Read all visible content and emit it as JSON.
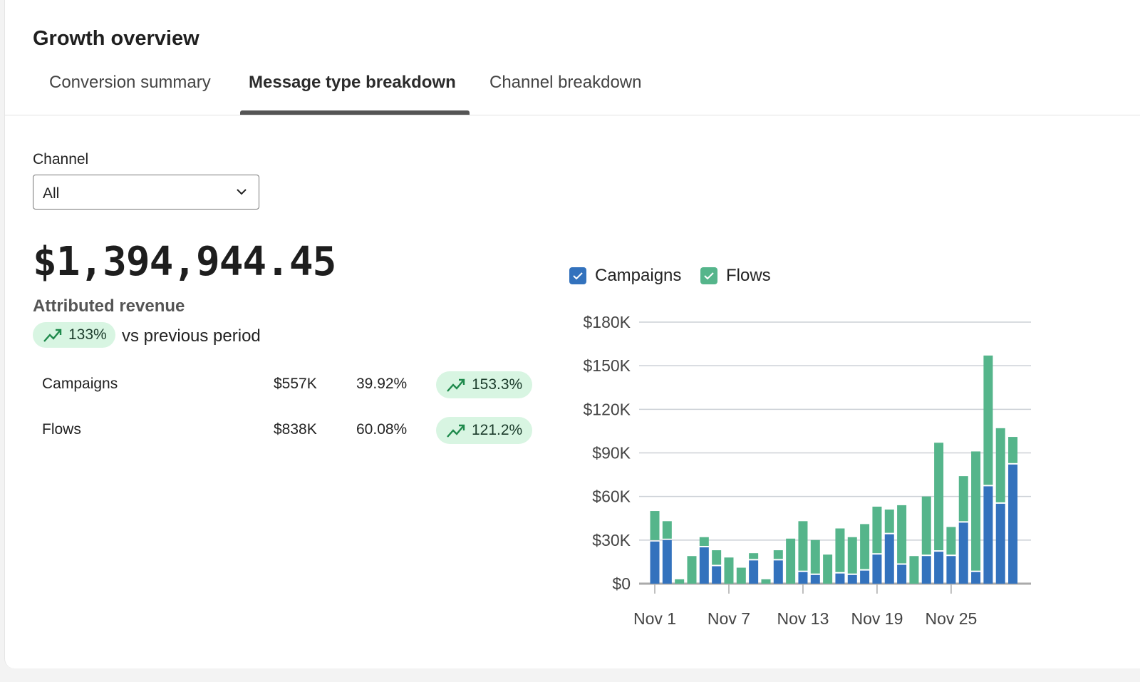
{
  "title": "Growth overview",
  "tabs": [
    {
      "label": "Conversion summary"
    },
    {
      "label": "Message type breakdown",
      "active": true
    },
    {
      "label": "Channel breakdown"
    }
  ],
  "filter": {
    "label": "Channel",
    "value": "All"
  },
  "summary": {
    "total": "$1,394,944.45",
    "label": "Attributed revenue",
    "change": "133%",
    "change_suffix": "vs previous period"
  },
  "rows": [
    {
      "name": "Campaigns",
      "revenue": "$557K",
      "share": "39.92%",
      "change": "153.3%"
    },
    {
      "name": "Flows",
      "revenue": "$838K",
      "share": "60.08%",
      "change": "121.2%"
    }
  ],
  "colors": {
    "campaigns": "#3372bd",
    "flows": "#55b58b",
    "positive_bg": "#d8f5e2",
    "positive_icon": "#1f8a4c"
  },
  "chart_data": {
    "type": "bar",
    "stacked": true,
    "legend": [
      "Campaigns",
      "Flows"
    ],
    "ylim": [
      0,
      180000
    ],
    "yticks": [
      "$0",
      "$30K",
      "$60K",
      "$90K",
      "$120K",
      "$150K",
      "$180K"
    ],
    "xticks": [
      "Nov 1",
      "Nov 7",
      "Nov 13",
      "Nov 19",
      "Nov 25"
    ],
    "x": [
      "Nov 1",
      "Nov 2",
      "Nov 3",
      "Nov 4",
      "Nov 5",
      "Nov 6",
      "Nov 7",
      "Nov 8",
      "Nov 9",
      "Nov 10",
      "Nov 11",
      "Nov 12",
      "Nov 13",
      "Nov 14",
      "Nov 15",
      "Nov 16",
      "Nov 17",
      "Nov 18",
      "Nov 19",
      "Nov 20",
      "Nov 21",
      "Nov 22",
      "Nov 23",
      "Nov 24",
      "Nov 25",
      "Nov 26",
      "Nov 27",
      "Nov 28",
      "Nov 29",
      "Nov 30"
    ],
    "series": [
      {
        "name": "Campaigns",
        "values": [
          29000,
          30000,
          0,
          0,
          25000,
          12000,
          0,
          0,
          16000,
          0,
          16000,
          0,
          8000,
          6000,
          0,
          7000,
          6000,
          9000,
          20000,
          34000,
          13000,
          0,
          19000,
          22000,
          19000,
          42000,
          8000,
          67000,
          55000,
          82000
        ]
      },
      {
        "name": "Flows",
        "values": [
          21000,
          13000,
          3000,
          19000,
          7000,
          11000,
          18000,
          11000,
          5000,
          3000,
          7000,
          31000,
          35000,
          24000,
          20000,
          31000,
          26000,
          32000,
          33000,
          17000,
          41000,
          19000,
          41000,
          75000,
          20000,
          32000,
          83000,
          90000,
          52000,
          19000
        ]
      }
    ]
  }
}
